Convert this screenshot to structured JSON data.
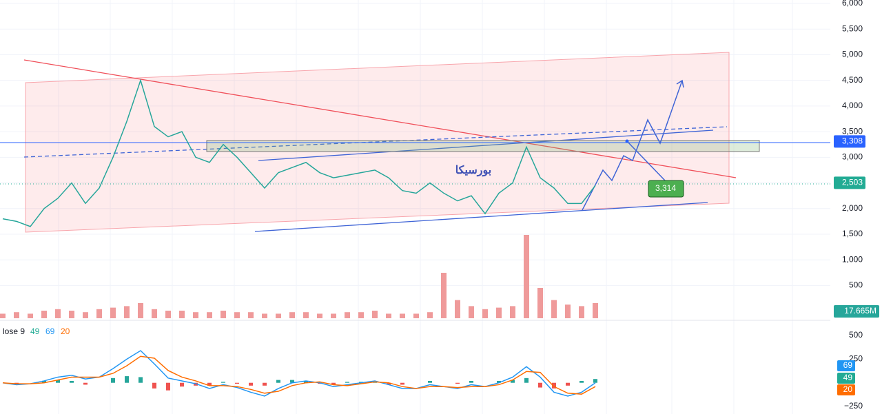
{
  "chart_data": [
    {
      "type": "price",
      "annotation": "بورسیکا",
      "ylim": [
        0,
        6066
      ],
      "yticks": [
        {
          "value": 6000,
          "label": "6,000"
        },
        {
          "value": 5500,
          "label": "5,500"
        },
        {
          "value": 5000,
          "label": "5,000"
        },
        {
          "value": 4500,
          "label": "4,500"
        },
        {
          "value": 4000,
          "label": "4,000"
        },
        {
          "value": 3500,
          "label": "3,500"
        },
        {
          "value": 3000,
          "label": "3,000"
        },
        {
          "value": 2500,
          "label": "2,500"
        },
        {
          "value": 2000,
          "label": "2,000"
        },
        {
          "value": 1500,
          "label": "1,500"
        },
        {
          "value": 1000,
          "label": "1,000"
        },
        500
      ],
      "grid": true,
      "series": [
        {
          "name": "close",
          "color": "#26a69a",
          "values": [
            1800,
            1750,
            1650,
            2000,
            2200,
            2500,
            2100,
            2400,
            3000,
            3700,
            4500,
            3600,
            3400,
            3500,
            3000,
            2900,
            3250,
            3000,
            2700,
            2400,
            2700,
            2800,
            2900,
            2700,
            2600,
            2650,
            2700,
            2750,
            2600,
            2350,
            2300,
            2500,
            2300,
            2150,
            2250,
            1900,
            2300,
            2500,
            3200,
            2600,
            2400,
            2100,
            2100,
            2450
          ]
        },
        {
          "name": "volume",
          "color": "#ef9a9a",
          "values": [
            3,
            4,
            3,
            5,
            6,
            5,
            4,
            6,
            7,
            8,
            10,
            6,
            5,
            5,
            4,
            4,
            5,
            4,
            4,
            3,
            3,
            4,
            4,
            3,
            3,
            4,
            4,
            5,
            3,
            3,
            3,
            4,
            30,
            12,
            8,
            6,
            7,
            8,
            55,
            20,
            12,
            9,
            8,
            10
          ]
        }
      ],
      "markers": [
        {
          "value": 3308,
          "label": "3,308",
          "color": "#2962ff"
        },
        {
          "value": 2503,
          "label": "2,503",
          "color": "#22ab94"
        }
      ],
      "target": {
        "value": 3314,
        "label": "3,314"
      },
      "volume_label": "17.665M"
    },
    {
      "type": "macd",
      "legend": "lose 9",
      "params": [
        49,
        69,
        20
      ],
      "param_colors": [
        "#22ab94",
        "#2196f3",
        "#ff6d00"
      ],
      "ylim": [
        -300,
        620
      ],
      "yticks": [
        500,
        250,
        {
          "value": -250,
          "label": "−250"
        }
      ],
      "series": [
        {
          "name": "macd",
          "color": "#2196f3",
          "values": [
            0,
            -20,
            -10,
            20,
            60,
            80,
            40,
            60,
            150,
            250,
            340,
            200,
            50,
            20,
            -10,
            -60,
            -20,
            -50,
            -100,
            -140,
            -60,
            0,
            20,
            0,
            -40,
            -20,
            0,
            20,
            -20,
            -60,
            -60,
            -20,
            -40,
            -60,
            -20,
            -40,
            0,
            60,
            170,
            60,
            -100,
            -140,
            -100,
            0
          ]
        },
        {
          "name": "signal",
          "color": "#ff6d00",
          "values": [
            0,
            -10,
            -10,
            0,
            30,
            60,
            60,
            60,
            100,
            180,
            280,
            260,
            130,
            60,
            20,
            -30,
            -30,
            -40,
            -70,
            -110,
            -90,
            -30,
            0,
            10,
            -20,
            -30,
            -10,
            10,
            0,
            -40,
            -60,
            -40,
            -40,
            -50,
            -40,
            -40,
            -20,
            30,
            120,
            110,
            -40,
            -110,
            -120,
            -40
          ]
        },
        {
          "name": "histogram",
          "color": "#26a69a",
          "values": [
            0,
            -10,
            0,
            20,
            30,
            20,
            -20,
            0,
            50,
            70,
            60,
            -60,
            -80,
            -40,
            -30,
            -30,
            10,
            -10,
            -30,
            -30,
            30,
            30,
            20,
            -10,
            -20,
            10,
            10,
            10,
            -20,
            -20,
            0,
            20,
            0,
            -10,
            20,
            0,
            20,
            30,
            50,
            -50,
            -60,
            -30,
            20,
            40
          ]
        }
      ]
    }
  ]
}
